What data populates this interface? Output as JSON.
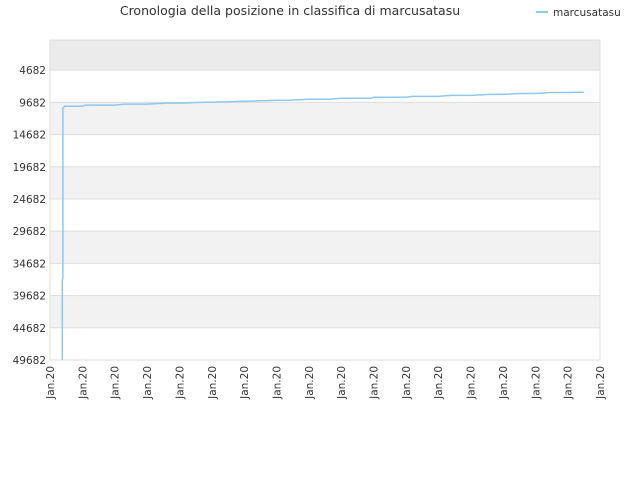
{
  "colors": {
    "series": "#8ec8f0",
    "band": "#f2f2f2",
    "band_top": "#ebebeb",
    "grid": "#dddddd",
    "text": "#333333"
  },
  "chart_data": {
    "type": "line",
    "title": "Cronologia della posizione in classifica di marcusatasu",
    "legend": {
      "position": "top-right"
    },
    "y_axis": {
      "inverted": true,
      "ticks": [
        4682,
        9682,
        14682,
        19682,
        24682,
        29682,
        34682,
        39682,
        44682,
        49682
      ],
      "ylim": [
        49682,
        0
      ]
    },
    "x_axis": {
      "tick_labels": [
        "Jan.20",
        "Jan.20",
        "Jan.20",
        "Jan.20",
        "Jan.20",
        "Jan.20",
        "Jan.20",
        "Jan.20",
        "Jan.20",
        "Jan.20",
        "Jan.20",
        "Jan.20",
        "Jan.20",
        "Jan.20",
        "Jan.20",
        "Jan.20",
        "Jan.20",
        "Jan.20"
      ],
      "range": [
        0,
        17
      ]
    },
    "grid": true,
    "series": [
      {
        "name": "marcusatasu",
        "x": [
          0.38,
          0.38,
          0.4,
          0.4,
          0.44,
          0.44,
          1.0,
          1.1,
          2.0,
          2.3,
          3.0,
          3.6,
          4.0,
          4.8,
          5.0,
          6.0,
          6.1,
          7.0,
          7.4,
          8.0,
          8.6,
          9.0,
          9.9,
          10.0,
          11.0,
          11.2,
          12.0,
          12.4,
          13.0,
          13.6,
          14.0,
          14.5,
          15.0,
          15.5,
          16.0,
          16.5
        ],
        "y": [
          49682,
          37300,
          37000,
          10600,
          10400,
          10300,
          10300,
          10100,
          10100,
          9950,
          9950,
          9800,
          9800,
          9650,
          9650,
          9500,
          9500,
          9350,
          9350,
          9200,
          9200,
          9050,
          9050,
          8900,
          8900,
          8750,
          8750,
          8600,
          8600,
          8450,
          8450,
          8300,
          8300,
          8150,
          8150,
          8100
        ]
      }
    ]
  }
}
